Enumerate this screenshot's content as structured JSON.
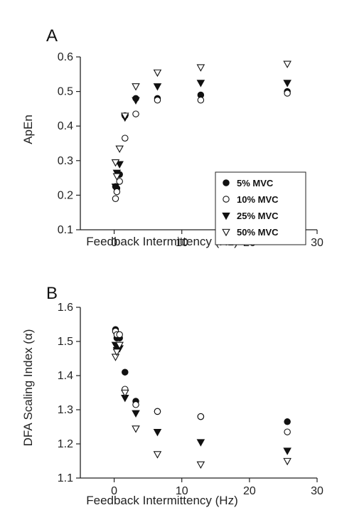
{
  "chart_data": [
    {
      "type": "scatter",
      "panel_label": "A",
      "xlabel": "Feedback Intermittency (Hz)",
      "ylabel": "ApEn",
      "xlim": [
        -5,
        30
      ],
      "ylim": [
        0.1,
        0.6
      ],
      "xticks": [
        0,
        10,
        20,
        30
      ],
      "yticks": [
        0.1,
        0.2,
        0.3,
        0.4,
        0.5,
        0.6
      ],
      "grid": false,
      "legend_position": "center-right",
      "series": [
        {
          "name": "5% MVC",
          "marker": "filled-circle",
          "x": [
            0.2,
            0.4,
            0.8,
            1.6,
            3.2,
            6.4,
            12.8,
            25.6
          ],
          "y": [
            0.225,
            0.22,
            0.26,
            0.43,
            0.48,
            0.48,
            0.49,
            0.5
          ]
        },
        {
          "name": "10% MVC",
          "marker": "open-circle",
          "x": [
            0.2,
            0.4,
            0.8,
            1.6,
            3.2,
            6.4,
            12.8,
            25.6
          ],
          "y": [
            0.19,
            0.21,
            0.24,
            0.365,
            0.435,
            0.475,
            0.475,
            0.495
          ]
        },
        {
          "name": "25% MVC",
          "marker": "filled-triangle-down",
          "x": [
            0.2,
            0.4,
            0.8,
            1.6,
            3.2,
            6.4,
            12.8,
            25.6
          ],
          "y": [
            0.225,
            0.265,
            0.29,
            0.425,
            0.475,
            0.515,
            0.525,
            0.525
          ]
        },
        {
          "name": "50% MVC",
          "marker": "open-triangle-down",
          "x": [
            0.2,
            0.4,
            0.8,
            1.6,
            3.2,
            6.4,
            12.8,
            25.6
          ],
          "y": [
            0.295,
            0.255,
            0.335,
            0.43,
            0.515,
            0.555,
            0.57,
            0.58
          ]
        }
      ]
    },
    {
      "type": "scatter",
      "panel_label": "B",
      "xlabel": "Feedback Intermittency (Hz)",
      "ylabel": "DFA Scaling Index (α)",
      "xlim": [
        -5,
        30
      ],
      "ylim": [
        1.1,
        1.6
      ],
      "xticks": [
        0,
        10,
        20,
        30
      ],
      "yticks": [
        1.1,
        1.2,
        1.3,
        1.4,
        1.5,
        1.6
      ],
      "grid": false,
      "series": [
        {
          "name": "5% MVC",
          "marker": "filled-circle",
          "x": [
            0.2,
            0.4,
            0.8,
            1.6,
            3.2,
            6.4,
            12.8,
            25.6
          ],
          "y": [
            1.535,
            1.51,
            1.51,
            1.41,
            1.325,
            1.295,
            1.28,
            1.265
          ]
        },
        {
          "name": "10% MVC",
          "marker": "open-circle",
          "x": [
            0.2,
            0.4,
            0.8,
            1.6,
            3.2,
            6.4,
            12.8,
            25.6
          ],
          "y": [
            1.53,
            1.52,
            1.52,
            1.36,
            1.315,
            1.295,
            1.28,
            1.235
          ]
        },
        {
          "name": "25% MVC",
          "marker": "filled-triangle-down",
          "x": [
            0.2,
            0.4,
            0.8,
            1.6,
            3.2,
            6.4,
            12.8,
            25.6
          ],
          "y": [
            1.49,
            1.475,
            1.48,
            1.335,
            1.29,
            1.235,
            1.205,
            1.18
          ]
        },
        {
          "name": "50% MVC",
          "marker": "open-triangle-down",
          "x": [
            0.2,
            0.4,
            0.8,
            1.6,
            3.2,
            6.4,
            12.8,
            25.6
          ],
          "y": [
            1.455,
            1.47,
            1.49,
            1.35,
            1.245,
            1.17,
            1.14,
            1.15
          ]
        }
      ]
    }
  ]
}
